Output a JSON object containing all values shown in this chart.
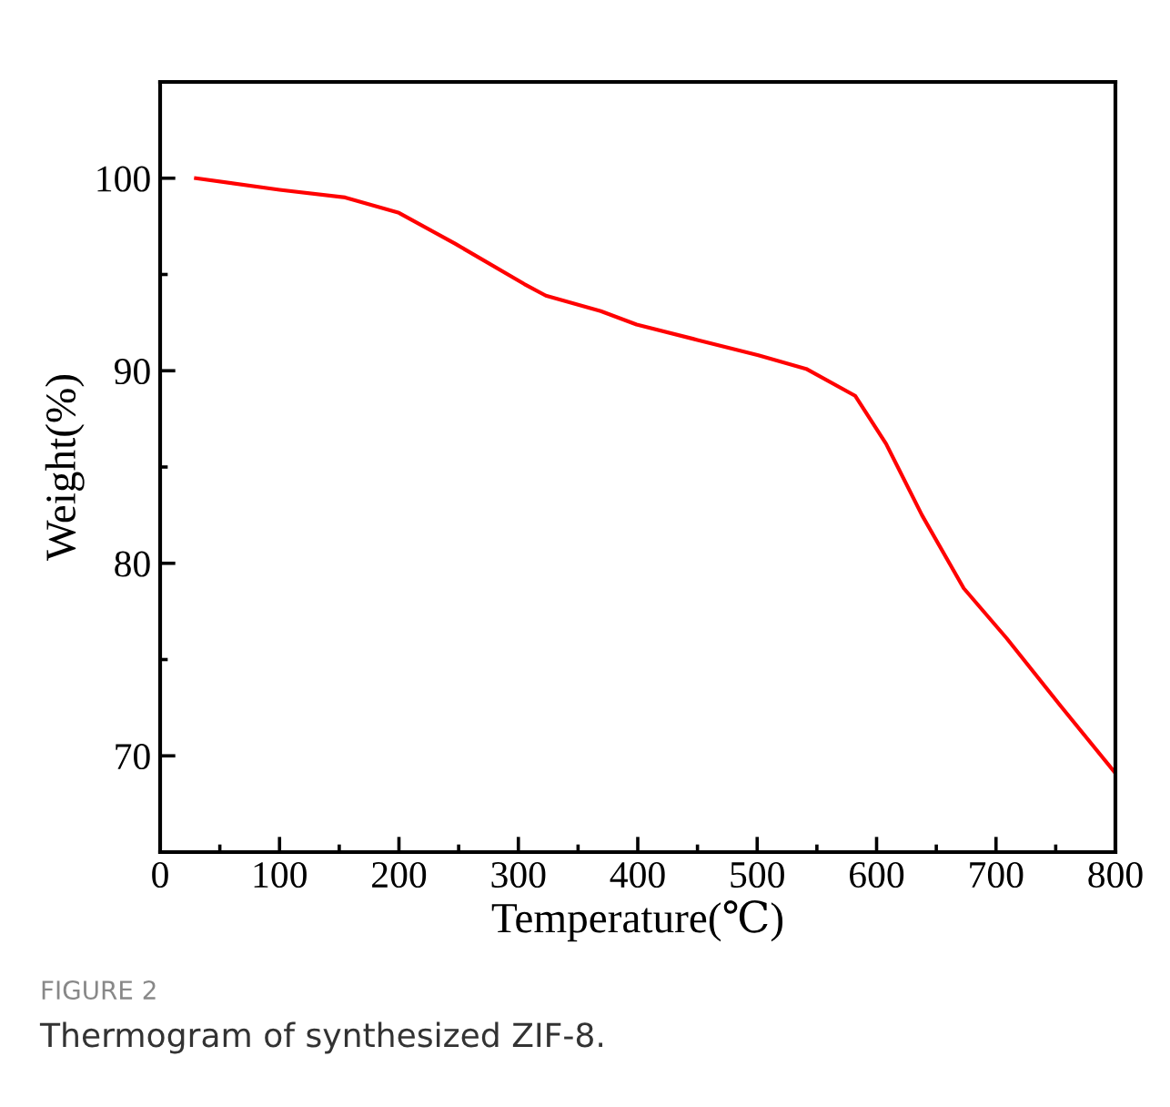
{
  "chart_data": {
    "type": "line",
    "xlabel": "Temperature(℃)",
    "ylabel": "Weight(%)",
    "annotations": [
      "FIGURE 2",
      "Thermogram of synthesized ZIF-8."
    ],
    "series": [
      {
        "color": "#ff0000",
        "x": [
          30,
          100,
          155,
          200,
          247,
          305,
          323,
          369,
          399,
          450,
          501,
          541,
          582,
          608,
          638,
          673,
          709,
          754,
          800
        ],
        "values": [
          100,
          99.4,
          99.0,
          98.2,
          96.6,
          94.5,
          93.9,
          93.1,
          92.4,
          91.6,
          90.8,
          90.1,
          88.7,
          86.2,
          82.5,
          78.7,
          76.1,
          72.6,
          69.1
        ]
      }
    ],
    "xlim": [
      0,
      800
    ],
    "xticks": [
      0,
      100,
      200,
      300,
      400,
      500,
      600,
      700,
      800
    ],
    "ylim": [
      65,
      105
    ],
    "yticks": [
      70,
      80,
      90,
      100
    ],
    "grid": false,
    "legend": false,
    "marker": "none",
    "line_style": "solid"
  }
}
